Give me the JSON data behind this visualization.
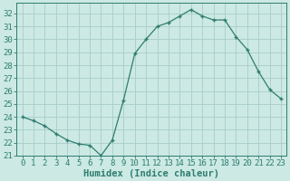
{
  "x": [
    0,
    1,
    2,
    3,
    4,
    5,
    6,
    7,
    8,
    9,
    10,
    11,
    12,
    13,
    14,
    15,
    16,
    17,
    18,
    19,
    20,
    21,
    22,
    23
  ],
  "y": [
    24.0,
    23.7,
    23.3,
    22.7,
    22.2,
    21.9,
    21.8,
    21.0,
    22.2,
    25.3,
    28.9,
    30.0,
    31.0,
    31.3,
    31.8,
    32.3,
    31.8,
    31.5,
    31.5,
    30.2,
    29.2,
    27.5,
    26.1,
    25.4
  ],
  "xlabel": "Humidex (Indice chaleur)",
  "line_color": "#2e7d6e",
  "marker": "+",
  "marker_size": 3.5,
  "marker_linewidth": 1.0,
  "bg_color": "#cce9e4",
  "grid_color": "#a8cdc8",
  "ylim": [
    21,
    32.8
  ],
  "xlim": [
    -0.5,
    23.5
  ],
  "yticks": [
    21,
    22,
    23,
    24,
    25,
    26,
    27,
    28,
    29,
    30,
    31,
    32
  ],
  "xticks": [
    0,
    1,
    2,
    3,
    4,
    5,
    6,
    7,
    8,
    9,
    10,
    11,
    12,
    13,
    14,
    15,
    16,
    17,
    18,
    19,
    20,
    21,
    22,
    23
  ],
  "tick_label_size": 6.5,
  "xlabel_size": 7.5,
  "spine_color": "#2e7d6e",
  "tick_color": "#2e7d6e"
}
